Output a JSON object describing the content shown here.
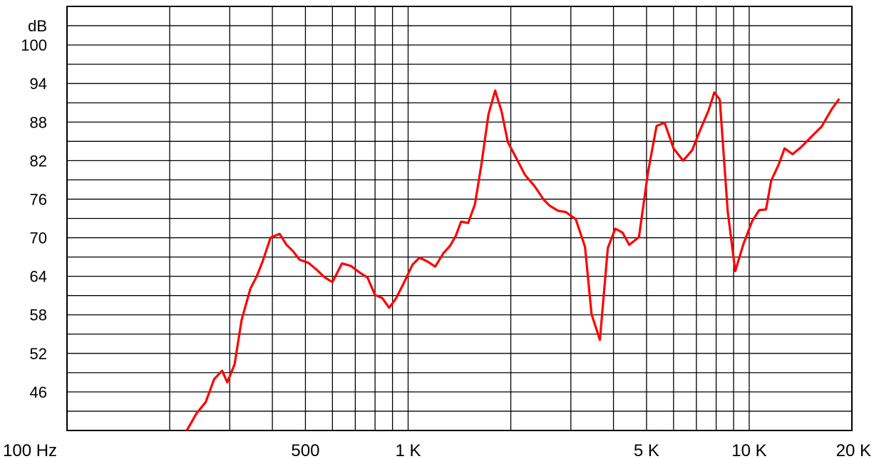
{
  "chart_data": {
    "type": "line",
    "x_scale": "log",
    "x_unit": "Hz",
    "y_unit": "dB",
    "xlim": [
      100,
      20000
    ],
    "ylim": [
      40,
      106
    ],
    "grid": true,
    "x_gridlines": [
      100,
      200,
      300,
      400,
      500,
      600,
      700,
      800,
      900,
      1000,
      2000,
      3000,
      4000,
      5000,
      6000,
      7000,
      8000,
      9000,
      10000,
      20000
    ],
    "y_gridlines": [
      40,
      43,
      46,
      49,
      52,
      55,
      58,
      61,
      64,
      67,
      70,
      73,
      76,
      79,
      82,
      85,
      88,
      91,
      94,
      97,
      100,
      103,
      106
    ],
    "x_tick_labels": [
      {
        "x": 100,
        "label": "100 Hz"
      },
      {
        "x": 500,
        "label": "500"
      },
      {
        "x": 1000,
        "label": "1 K"
      },
      {
        "x": 5000,
        "label": "5 K"
      },
      {
        "x": 10000,
        "label": "10 K"
      },
      {
        "x": 20000,
        "label": "20 K"
      }
    ],
    "y_tick_labels": [
      {
        "y": 46,
        "label": "46"
      },
      {
        "y": 52,
        "label": "52"
      },
      {
        "y": 58,
        "label": "58"
      },
      {
        "y": 64,
        "label": "64"
      },
      {
        "y": 70,
        "label": "70"
      },
      {
        "y": 76,
        "label": "76"
      },
      {
        "y": 82,
        "label": "82"
      },
      {
        "y": 88,
        "label": "88"
      },
      {
        "y": 94,
        "label": "94"
      },
      {
        "y": 100,
        "label": "100"
      },
      {
        "y": 103,
        "label": "dB"
      }
    ],
    "series": [
      {
        "color": "#ff0000",
        "points": [
          [
            225,
            40.1
          ],
          [
            240,
            42.7
          ],
          [
            255,
            44.4
          ],
          [
            270,
            48.0
          ],
          [
            285,
            49.3
          ],
          [
            295,
            47.5
          ],
          [
            310,
            50.3
          ],
          [
            325,
            57.2
          ],
          [
            345,
            62.1
          ],
          [
            360,
            64.0
          ],
          [
            375,
            66.4
          ],
          [
            395,
            70.0
          ],
          [
            420,
            70.6
          ],
          [
            440,
            68.9
          ],
          [
            460,
            67.9
          ],
          [
            480,
            66.6
          ],
          [
            510,
            66.1
          ],
          [
            540,
            65.0
          ],
          [
            570,
            63.8
          ],
          [
            600,
            63.1
          ],
          [
            640,
            66.0
          ],
          [
            680,
            65.6
          ],
          [
            720,
            64.6
          ],
          [
            760,
            63.8
          ],
          [
            800,
            61.1
          ],
          [
            840,
            60.6
          ],
          [
            880,
            59.1
          ],
          [
            920,
            60.5
          ],
          [
            970,
            62.9
          ],
          [
            1030,
            65.8
          ],
          [
            1080,
            66.9
          ],
          [
            1140,
            66.3
          ],
          [
            1200,
            65.5
          ],
          [
            1270,
            67.6
          ],
          [
            1330,
            68.8
          ],
          [
            1380,
            70.3
          ],
          [
            1430,
            72.5
          ],
          [
            1500,
            72.3
          ],
          [
            1570,
            75.2
          ],
          [
            1640,
            81.4
          ],
          [
            1720,
            89.2
          ],
          [
            1800,
            92.9
          ],
          [
            1880,
            89.6
          ],
          [
            1960,
            84.9
          ],
          [
            2080,
            82.3
          ],
          [
            2200,
            79.8
          ],
          [
            2350,
            78.0
          ],
          [
            2500,
            75.9
          ],
          [
            2600,
            75.0
          ],
          [
            2750,
            74.2
          ],
          [
            2900,
            74.0
          ],
          [
            3100,
            72.9
          ],
          [
            3300,
            68.6
          ],
          [
            3450,
            58.1
          ],
          [
            3650,
            54.1
          ],
          [
            3850,
            68.4
          ],
          [
            4050,
            71.4
          ],
          [
            4250,
            70.8
          ],
          [
            4450,
            68.9
          ],
          [
            4750,
            70.1
          ],
          [
            5050,
            80.2
          ],
          [
            5350,
            87.4
          ],
          [
            5650,
            87.9
          ],
          [
            6000,
            83.9
          ],
          [
            6400,
            82.0
          ],
          [
            6800,
            83.6
          ],
          [
            7200,
            86.9
          ],
          [
            7600,
            89.8
          ],
          [
            7900,
            92.6
          ],
          [
            8200,
            91.5
          ],
          [
            8650,
            74.1
          ],
          [
            9100,
            64.8
          ],
          [
            9600,
            68.9
          ],
          [
            10200,
            72.6
          ],
          [
            10700,
            74.3
          ],
          [
            11200,
            74.4
          ],
          [
            11600,
            78.9
          ],
          [
            12200,
            81.4
          ],
          [
            12700,
            83.9
          ],
          [
            13400,
            83.0
          ],
          [
            14200,
            84.1
          ],
          [
            15200,
            85.7
          ],
          [
            16300,
            87.3
          ],
          [
            17500,
            90.1
          ],
          [
            18300,
            91.5
          ]
        ]
      }
    ]
  }
}
